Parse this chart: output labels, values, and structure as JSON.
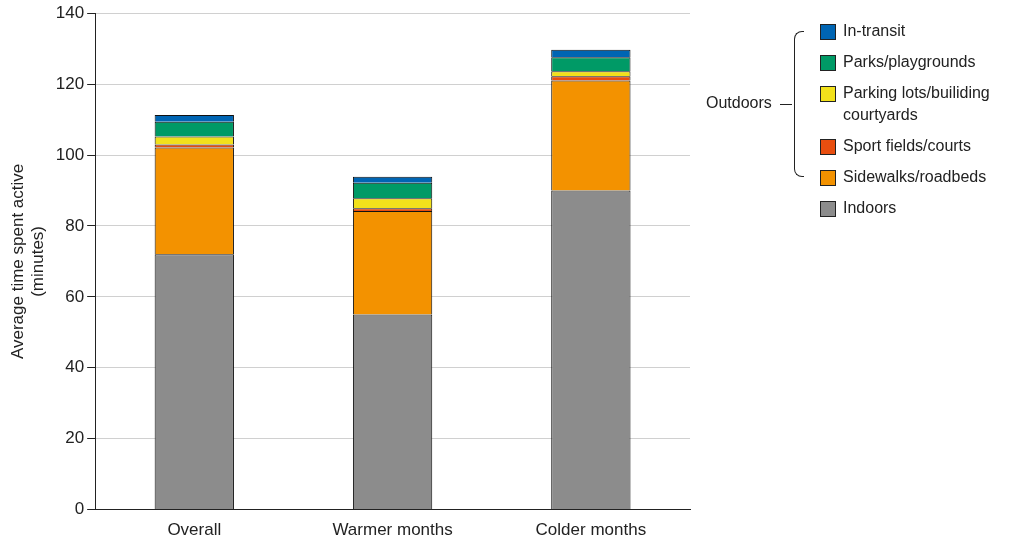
{
  "chart_data": {
    "type": "bar",
    "stacked": true,
    "ylabel": "Average time spent active\n(minutes)",
    "categories": [
      "Overall",
      "Warmer months",
      "Colder months"
    ],
    "series": [
      {
        "name": "Indoors",
        "color": "#8c8c8c",
        "values": [
          72,
          55,
          90
        ]
      },
      {
        "name": "Sidewalks/roadbeds",
        "color": "#f39200",
        "values": [
          30.1,
          29.2,
          31
        ]
      },
      {
        "name": "Sport fields/courts",
        "color": "#e84e0f",
        "values": [
          0.9,
          0.8,
          1.2
        ]
      },
      {
        "name": "Parking lots/builiding courtyards",
        "color": "#f2e11b",
        "values": [
          2.2,
          2.8,
          1.4
        ]
      },
      {
        "name": "Parks/playgrounds",
        "color": "#009a66",
        "values": [
          4.2,
          4.4,
          4
        ]
      },
      {
        "name": "In-transit",
        "color": "#0065b3",
        "values": [
          1.9,
          1.7,
          2.1
        ]
      }
    ],
    "ylim": [
      0,
      140
    ],
    "yticks": [
      0,
      20,
      40,
      60,
      80,
      100,
      120,
      140
    ],
    "grid": "y",
    "legend": "right",
    "annotations": [
      "Outdoors"
    ]
  }
}
